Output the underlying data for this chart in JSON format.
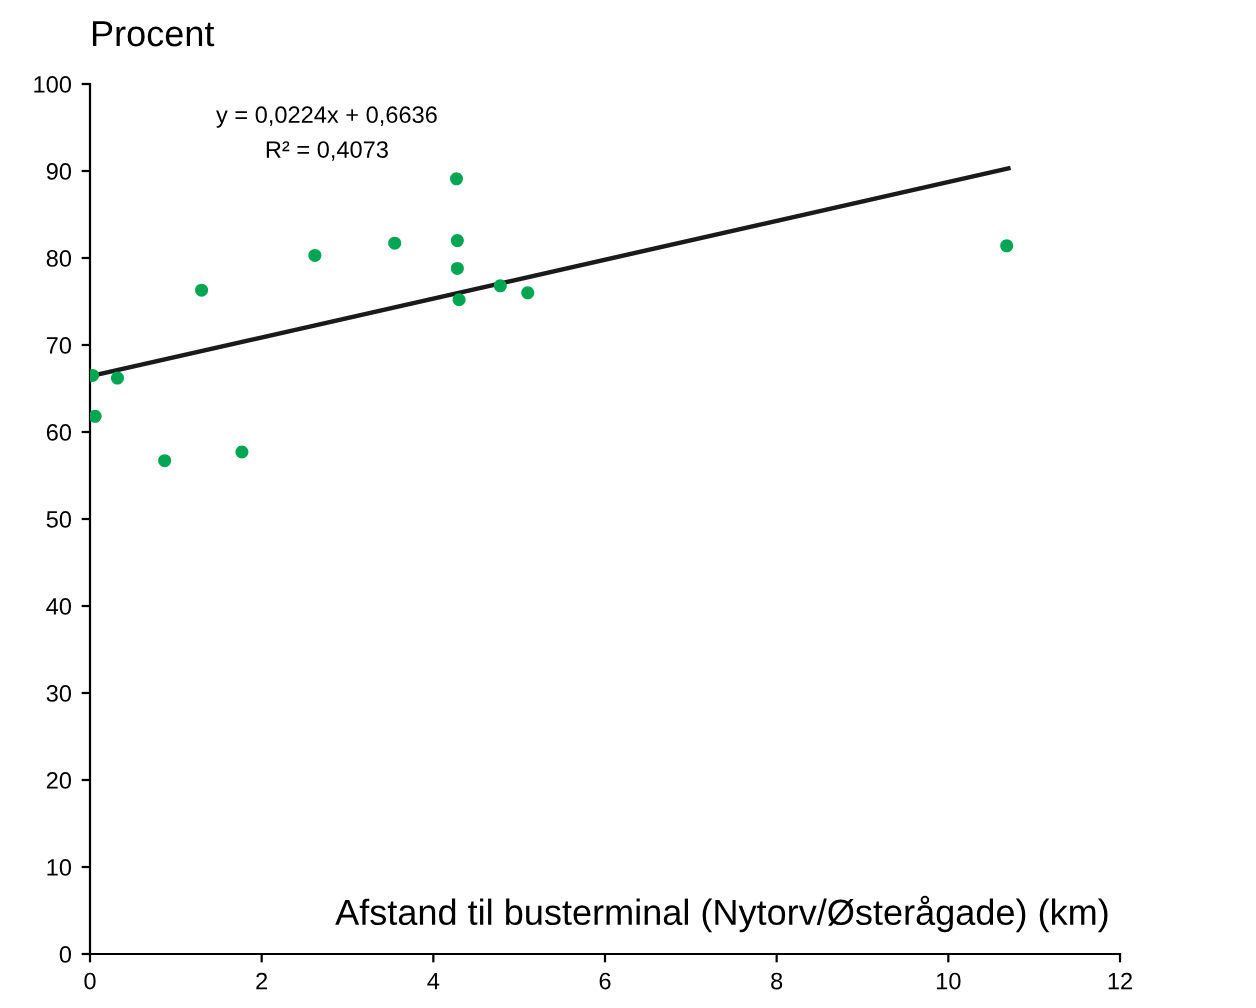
{
  "chart_data": {
    "type": "scatter",
    "ylabel": "Procent",
    "xlabel": "Afstand til busterminal (Nytorv/Østerågade) (km)",
    "annotations": [
      "y = 0,0224x + 0,6636",
      "R² = 0,4073"
    ],
    "series": [
      {
        "color": "#00a651",
        "marker": "circle",
        "x": [
          0.03,
          0.06,
          0.32,
          0.87,
          1.3,
          1.77,
          2.62,
          3.55,
          4.27,
          4.28,
          4.28,
          4.3,
          4.78,
          5.1,
          10.68
        ],
        "values": [
          66.5,
          61.8,
          66.2,
          56.7,
          76.3,
          57.7,
          80.3,
          81.7,
          89.1,
          82.0,
          78.8,
          75.2,
          76.8,
          76.0,
          81.4
        ]
      },
      {
        "type": "line",
        "color": "#1a1a1a",
        "line_style": "solid",
        "x": [
          0,
          10.7
        ],
        "values": [
          66.4,
          90.3
        ]
      }
    ],
    "xlim": [
      0,
      12
    ],
    "xticks": [
      0,
      2,
      4,
      6,
      8,
      10,
      12
    ],
    "ylim": [
      0,
      100
    ],
    "yticks": [
      0,
      10,
      20,
      30,
      40,
      50,
      60,
      70,
      80,
      90,
      100
    ],
    "grid": false,
    "legend": false
  }
}
